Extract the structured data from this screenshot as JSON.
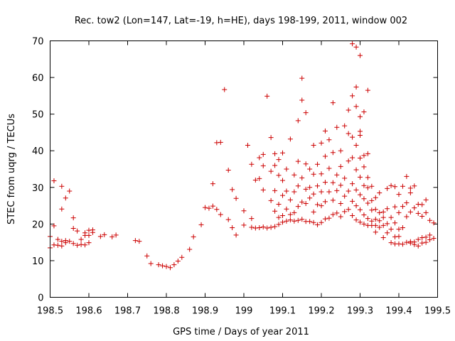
{
  "chart_data": {
    "type": "scatter",
    "title": "Rec. tow2 (Lon=147, Lat=-19, h=HE), days 198-199, 2011, window 002",
    "xlabel": "GPS time / Days of year 2011",
    "ylabel": "STEC from uqrg / TECUs",
    "xlim": [
      198.5,
      199.5
    ],
    "ylim": [
      0,
      70
    ],
    "xticks": [
      198.5,
      198.6,
      198.7,
      198.8,
      198.9,
      199,
      199.1,
      199.2,
      199.3,
      199.4,
      199.5
    ],
    "xtick_labels": [
      "198.5",
      "198.6",
      "198.7",
      "198.8",
      "198.9",
      "199",
      "199.1",
      "199.2",
      "199.3",
      "199.4",
      "199.5"
    ],
    "yticks": [
      0,
      10,
      20,
      30,
      40,
      50,
      60,
      70
    ],
    "ytick_labels": [
      "0",
      "10",
      "20",
      "30",
      "40",
      "50",
      "60",
      "70"
    ],
    "marker": "+",
    "color": "#cc0000",
    "series": [
      {
        "name": "STEC",
        "points": [
          [
            198.5,
            13.5
          ],
          [
            198.5,
            16.6
          ],
          [
            198.51,
            14.3
          ],
          [
            198.51,
            19.5
          ],
          [
            198.51,
            31.8
          ],
          [
            198.52,
            14.2
          ],
          [
            198.52,
            15.8
          ],
          [
            198.53,
            14.0
          ],
          [
            198.53,
            15.3
          ],
          [
            198.53,
            24.1
          ],
          [
            198.53,
            30.3
          ],
          [
            198.54,
            14.9
          ],
          [
            198.54,
            15.5
          ],
          [
            198.54,
            27.1
          ],
          [
            198.55,
            15.3
          ],
          [
            198.55,
            29.0
          ],
          [
            198.56,
            14.7
          ],
          [
            198.56,
            18.8
          ],
          [
            198.56,
            21.7
          ],
          [
            198.57,
            14.2
          ],
          [
            198.57,
            18.1
          ],
          [
            198.58,
            14.4
          ],
          [
            198.58,
            15.8
          ],
          [
            198.59,
            14.3
          ],
          [
            198.59,
            16.9
          ],
          [
            198.59,
            17.6
          ],
          [
            198.6,
            14.9
          ],
          [
            198.6,
            16.9
          ],
          [
            198.6,
            18.3
          ],
          [
            198.61,
            17.7
          ],
          [
            198.61,
            18.4
          ],
          [
            198.63,
            16.6
          ],
          [
            198.64,
            17.1
          ],
          [
            198.66,
            16.5
          ],
          [
            198.67,
            17.0
          ],
          [
            198.72,
            15.5
          ],
          [
            198.73,
            15.3
          ],
          [
            198.75,
            11.3
          ],
          [
            198.76,
            9.2
          ],
          [
            198.78,
            8.9
          ],
          [
            198.79,
            8.6
          ],
          [
            198.8,
            8.4
          ],
          [
            198.81,
            8.1
          ],
          [
            198.82,
            8.9
          ],
          [
            198.83,
            9.9
          ],
          [
            198.84,
            10.9
          ],
          [
            198.86,
            13.1
          ],
          [
            198.87,
            16.5
          ],
          [
            198.89,
            19.8
          ],
          [
            198.9,
            24.5
          ],
          [
            198.91,
            24.3
          ],
          [
            198.92,
            24.9
          ],
          [
            198.92,
            31.0
          ],
          [
            198.93,
            24.0
          ],
          [
            198.93,
            42.2
          ],
          [
            198.94,
            22.6
          ],
          [
            198.94,
            42.3
          ],
          [
            198.95,
            56.7
          ],
          [
            198.96,
            21.2
          ],
          [
            198.96,
            34.7
          ],
          [
            198.97,
            19.0
          ],
          [
            198.97,
            29.4
          ],
          [
            198.98,
            17.0
          ],
          [
            198.98,
            27.0
          ],
          [
            199.0,
            19.7
          ],
          [
            199.0,
            23.6
          ],
          [
            199.01,
            41.5
          ],
          [
            199.02,
            19.1
          ],
          [
            199.02,
            21.5
          ],
          [
            199.02,
            36.3
          ],
          [
            199.03,
            18.9
          ],
          [
            199.03,
            32.0
          ],
          [
            199.04,
            19.0
          ],
          [
            199.04,
            32.4
          ],
          [
            199.04,
            38.1
          ],
          [
            199.05,
            19.2
          ],
          [
            199.05,
            29.3
          ],
          [
            199.05,
            35.9
          ],
          [
            199.05,
            39.0
          ],
          [
            199.06,
            18.9
          ],
          [
            199.06,
            54.9
          ],
          [
            199.07,
            19.1
          ],
          [
            199.07,
            26.4
          ],
          [
            199.07,
            34.4
          ],
          [
            199.07,
            43.6
          ],
          [
            199.08,
            19.3
          ],
          [
            199.08,
            23.5
          ],
          [
            199.08,
            29.1
          ],
          [
            199.08,
            36.0
          ],
          [
            199.08,
            39.2
          ],
          [
            199.09,
            19.9
          ],
          [
            199.09,
            21.8
          ],
          [
            199.09,
            25.4
          ],
          [
            199.09,
            33.3
          ],
          [
            199.09,
            37.6
          ],
          [
            199.1,
            20.5
          ],
          [
            199.1,
            22.3
          ],
          [
            199.1,
            27.8
          ],
          [
            199.1,
            31.9
          ],
          [
            199.1,
            39.4
          ],
          [
            199.11,
            20.8
          ],
          [
            199.11,
            24.1
          ],
          [
            199.11,
            29.0
          ],
          [
            199.11,
            35.0
          ],
          [
            199.12,
            21.1
          ],
          [
            199.12,
            22.6
          ],
          [
            199.12,
            26.6
          ],
          [
            199.12,
            43.2
          ],
          [
            199.13,
            20.8
          ],
          [
            199.13,
            23.1
          ],
          [
            199.13,
            28.8
          ],
          [
            199.13,
            33.4
          ],
          [
            199.14,
            21.0
          ],
          [
            199.14,
            24.8
          ],
          [
            199.14,
            30.4
          ],
          [
            199.14,
            37.1
          ],
          [
            199.14,
            48.2
          ],
          [
            199.15,
            21.3
          ],
          [
            199.15,
            26.0
          ],
          [
            199.15,
            32.6
          ],
          [
            199.15,
            53.8
          ],
          [
            199.15,
            59.8
          ],
          [
            199.16,
            20.7
          ],
          [
            199.16,
            25.6
          ],
          [
            199.16,
            29.5
          ],
          [
            199.16,
            36.4
          ],
          [
            199.16,
            50.4
          ],
          [
            199.17,
            20.7
          ],
          [
            199.17,
            27.1
          ],
          [
            199.17,
            30.0
          ],
          [
            199.17,
            35.0
          ],
          [
            199.18,
            20.4
          ],
          [
            199.18,
            23.3
          ],
          [
            199.18,
            28.2
          ],
          [
            199.18,
            33.6
          ],
          [
            199.18,
            41.5
          ],
          [
            199.19,
            19.8
          ],
          [
            199.19,
            25.3
          ],
          [
            199.19,
            30.4
          ],
          [
            199.19,
            36.3
          ],
          [
            199.2,
            20.4
          ],
          [
            199.2,
            25.0
          ],
          [
            199.2,
            28.8
          ],
          [
            199.2,
            33.7
          ],
          [
            199.2,
            42.1
          ],
          [
            199.21,
            21.4
          ],
          [
            199.21,
            26.1
          ],
          [
            199.21,
            31.4
          ],
          [
            199.21,
            38.5
          ],
          [
            199.21,
            45.4
          ],
          [
            199.22,
            21.6
          ],
          [
            199.22,
            28.8
          ],
          [
            199.22,
            35.2
          ],
          [
            199.22,
            43.0
          ],
          [
            199.23,
            22.6
          ],
          [
            199.23,
            26.5
          ],
          [
            199.23,
            31.3
          ],
          [
            199.23,
            39.5
          ],
          [
            199.23,
            53.1
          ],
          [
            199.24,
            23.0
          ],
          [
            199.24,
            29.1
          ],
          [
            199.24,
            33.4
          ],
          [
            199.24,
            46.4
          ],
          [
            199.25,
            22.0
          ],
          [
            199.25,
            25.6
          ],
          [
            199.25,
            30.6
          ],
          [
            199.25,
            35.7
          ],
          [
            199.25,
            40.0
          ],
          [
            199.26,
            23.4
          ],
          [
            199.26,
            27.6
          ],
          [
            199.26,
            32.5
          ],
          [
            199.26,
            46.8
          ],
          [
            199.27,
            24.0
          ],
          [
            199.27,
            29.0
          ],
          [
            199.27,
            37.2
          ],
          [
            199.27,
            44.7
          ],
          [
            199.27,
            51.1
          ],
          [
            199.28,
            22.3
          ],
          [
            199.28,
            26.2
          ],
          [
            199.28,
            31.0
          ],
          [
            199.28,
            38.1
          ],
          [
            199.28,
            43.7
          ],
          [
            199.28,
            55.0
          ],
          [
            199.28,
            69.2
          ],
          [
            199.29,
            21.1
          ],
          [
            199.29,
            25.0
          ],
          [
            199.29,
            29.3
          ],
          [
            199.29,
            34.8
          ],
          [
            199.29,
            41.5
          ],
          [
            199.29,
            52.1
          ],
          [
            199.29,
            57.4
          ],
          [
            199.29,
            68.3
          ],
          [
            199.3,
            20.5
          ],
          [
            199.3,
            23.9
          ],
          [
            199.3,
            28.0
          ],
          [
            199.3,
            32.8
          ],
          [
            199.3,
            38.0
          ],
          [
            199.3,
            44.2
          ],
          [
            199.3,
            45.3
          ],
          [
            199.3,
            49.3
          ],
          [
            199.3,
            66.0
          ],
          [
            199.31,
            20.0
          ],
          [
            199.31,
            22.5
          ],
          [
            199.31,
            26.9
          ],
          [
            199.31,
            30.5
          ],
          [
            199.31,
            35.6
          ],
          [
            199.31,
            38.7
          ],
          [
            199.31,
            50.6
          ],
          [
            199.32,
            19.6
          ],
          [
            199.32,
            21.5
          ],
          [
            199.32,
            25.7
          ],
          [
            199.32,
            29.9
          ],
          [
            199.32,
            32.7
          ],
          [
            199.32,
            39.2
          ],
          [
            199.32,
            56.5
          ],
          [
            199.33,
            19.6
          ],
          [
            199.33,
            20.8
          ],
          [
            199.33,
            23.8
          ],
          [
            199.33,
            26.4
          ],
          [
            199.33,
            30.3
          ],
          [
            199.34,
            17.8
          ],
          [
            199.34,
            19.6
          ],
          [
            199.34,
            21.3
          ],
          [
            199.34,
            24.0
          ],
          [
            199.34,
            27.2
          ],
          [
            199.35,
            19.1
          ],
          [
            199.35,
            20.9
          ],
          [
            199.35,
            23.1
          ],
          [
            199.35,
            28.5
          ],
          [
            199.36,
            16.3
          ],
          [
            199.36,
            19.6
          ],
          [
            199.36,
            21.8
          ],
          [
            199.36,
            23.3
          ],
          [
            199.37,
            17.6
          ],
          [
            199.37,
            20.1
          ],
          [
            199.37,
            24.2
          ],
          [
            199.37,
            29.7
          ],
          [
            199.38,
            14.9
          ],
          [
            199.38,
            18.6
          ],
          [
            199.38,
            21.8
          ],
          [
            199.38,
            30.5
          ],
          [
            199.39,
            14.6
          ],
          [
            199.39,
            16.5
          ],
          [
            199.39,
            20.3
          ],
          [
            199.39,
            24.7
          ],
          [
            199.39,
            30.2
          ],
          [
            199.4,
            14.6
          ],
          [
            199.4,
            16.6
          ],
          [
            199.4,
            18.6
          ],
          [
            199.4,
            23.1
          ],
          [
            199.4,
            28.1
          ],
          [
            199.41,
            14.5
          ],
          [
            199.41,
            19.0
          ],
          [
            199.41,
            24.8
          ],
          [
            199.41,
            30.3
          ],
          [
            199.42,
            15.0
          ],
          [
            199.42,
            22.0
          ],
          [
            199.42,
            25.8
          ],
          [
            199.42,
            33.0
          ],
          [
            199.43,
            14.8
          ],
          [
            199.43,
            15.2
          ],
          [
            199.43,
            23.3
          ],
          [
            199.43,
            28.5
          ],
          [
            199.43,
            29.8
          ],
          [
            199.44,
            14.4
          ],
          [
            199.44,
            15.1
          ],
          [
            199.44,
            24.4
          ],
          [
            199.44,
            30.4
          ],
          [
            199.45,
            14.0
          ],
          [
            199.45,
            15.8
          ],
          [
            199.45,
            22.9
          ],
          [
            199.45,
            25.4
          ],
          [
            199.46,
            14.8
          ],
          [
            199.46,
            16.3
          ],
          [
            199.46,
            22.1
          ],
          [
            199.46,
            25.3
          ],
          [
            199.47,
            15.0
          ],
          [
            199.47,
            16.4
          ],
          [
            199.47,
            23.1
          ],
          [
            199.47,
            26.6
          ],
          [
            199.48,
            15.7
          ],
          [
            199.48,
            17.0
          ],
          [
            199.48,
            21.0
          ],
          [
            199.49,
            16.1
          ],
          [
            199.49,
            20.3
          ]
        ]
      }
    ]
  }
}
